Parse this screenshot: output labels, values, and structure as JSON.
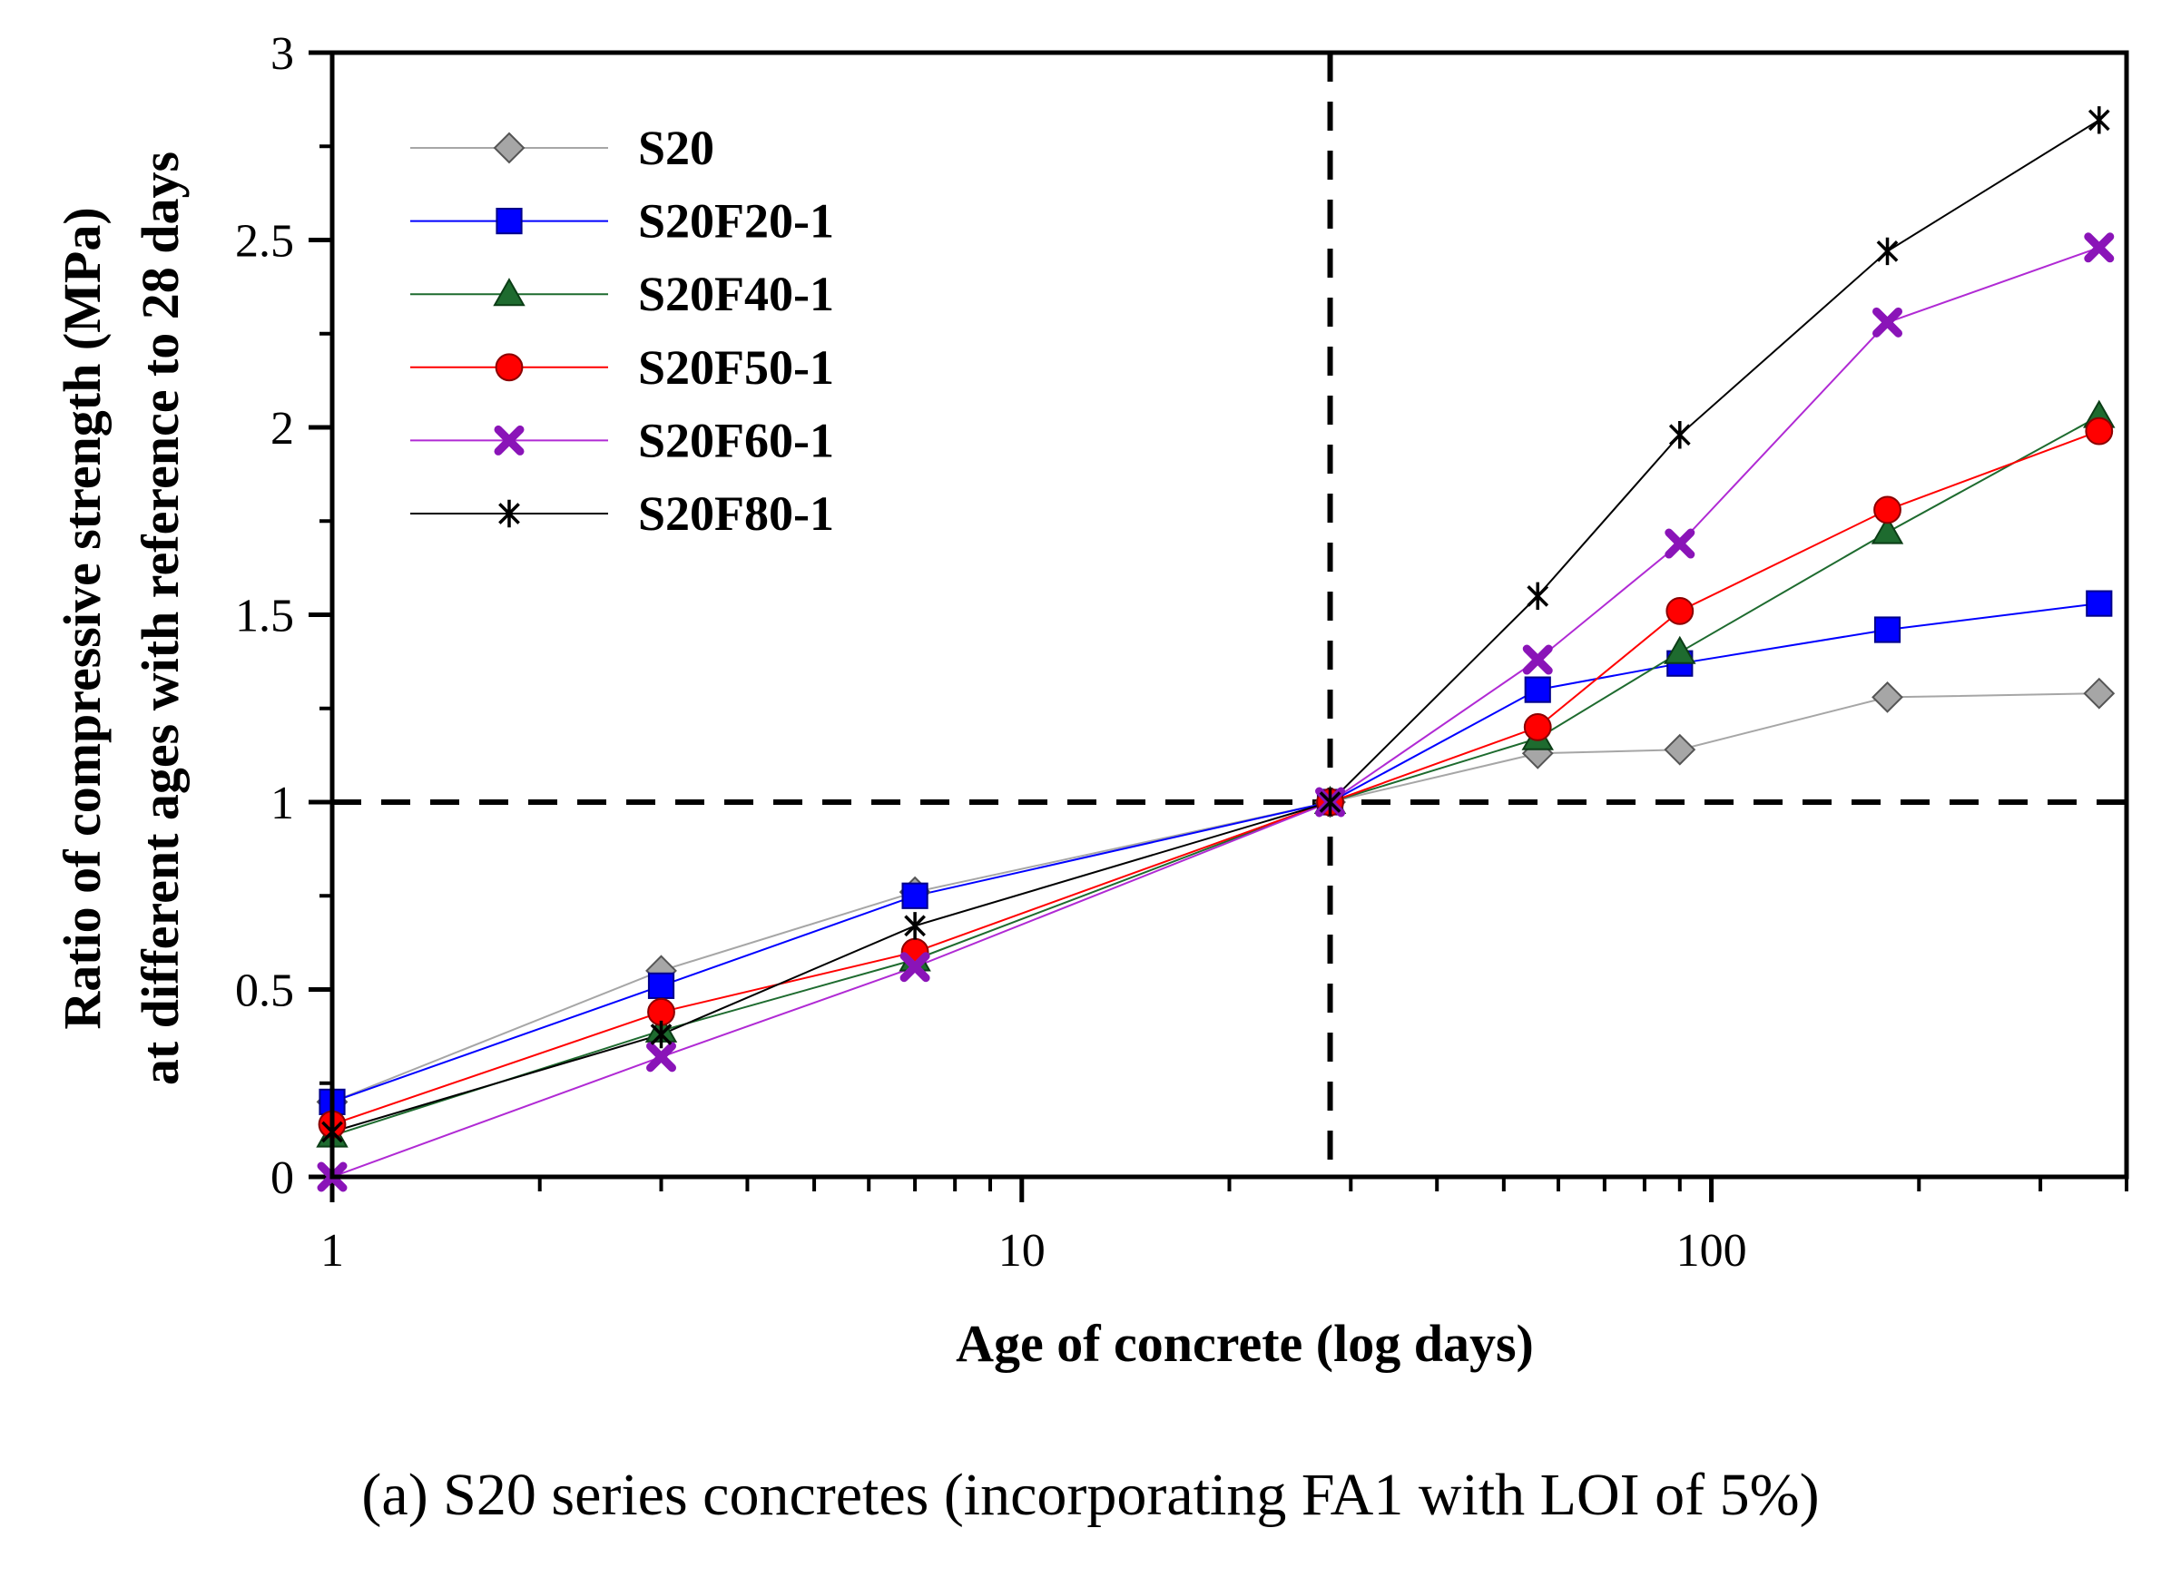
{
  "chart_data": {
    "type": "line",
    "xscale": "log",
    "xlabel": "Age of concrete (log days)",
    "ylabel_line1": "Ratio of compressive strength (MPa)",
    "ylabel_line2": "at different ages with reference to 28 days",
    "xlim": [
      1,
      400
    ],
    "ylim": [
      0,
      3
    ],
    "xticks_labeled": [
      "1",
      "10",
      "100"
    ],
    "yticks": [
      "0",
      "0.5",
      "1",
      "1.5",
      "2",
      "2.5",
      "3"
    ],
    "reference_lines": {
      "x": 28,
      "y": 1,
      "style": "dashed"
    },
    "legend_position": "top-left",
    "grid": false,
    "x": [
      1,
      3,
      7,
      28,
      56,
      90,
      180,
      365
    ],
    "series": [
      {
        "name": "S20",
        "color": "#a6a6a6",
        "marker": "diamond",
        "marker_fill": "#a6a6a6",
        "values": [
          0.2,
          0.55,
          0.76,
          1.0,
          1.13,
          1.14,
          1.28,
          1.29
        ]
      },
      {
        "name": "S20F20-1",
        "color": "#0000ff",
        "marker": "square",
        "marker_fill": "#0000ff",
        "values": [
          0.2,
          0.51,
          0.75,
          1.0,
          1.3,
          1.37,
          1.46,
          1.53
        ]
      },
      {
        "name": "S20F40-1",
        "color": "#1e6b2f",
        "marker": "triangle",
        "marker_fill": "#1e6b2f",
        "values": [
          0.11,
          0.39,
          0.58,
          1.0,
          1.17,
          1.4,
          1.72,
          2.03
        ]
      },
      {
        "name": "S20F50-1",
        "color": "#ff0000",
        "marker": "circle",
        "marker_fill": "#ff0000",
        "values": [
          0.14,
          0.44,
          0.6,
          1.0,
          1.2,
          1.51,
          1.78,
          1.99
        ]
      },
      {
        "name": "S20F60-1",
        "color": "#b02ad4",
        "marker": "x",
        "marker_fill": "#8a14b8",
        "values": [
          0.0,
          0.32,
          0.56,
          1.0,
          1.38,
          1.69,
          2.28,
          2.48
        ]
      },
      {
        "name": "S20F80-1",
        "color": "#000000",
        "marker": "asterisk",
        "marker_fill": "#000000",
        "values": [
          0.12,
          0.38,
          0.67,
          1.0,
          1.55,
          1.98,
          2.47,
          2.82
        ]
      }
    ]
  },
  "caption": "(a) S20 series concretes (incorporating FA1 with LOI of 5%)"
}
